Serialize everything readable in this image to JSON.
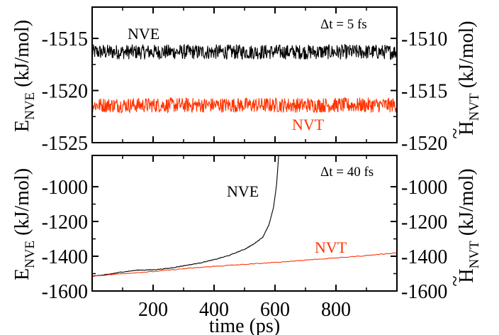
{
  "chart_data": [
    {
      "type": "line",
      "panel": "top",
      "annotation": "Δt = 5 fs",
      "xlim": [
        0,
        1000
      ],
      "left_axis": {
        "label_main": "E",
        "label_sub": "NVE",
        "label_unit": " (kJ/mol)",
        "ylim": [
          -1525,
          -1512
        ],
        "ticks": [
          -1515,
          -1520,
          -1525
        ],
        "tick_labels": [
          "-1515",
          "-1520",
          "-1525"
        ]
      },
      "right_axis": {
        "label_main": "H",
        "label_tilde": "~",
        "label_sub": "NVT",
        "label_unit": " (kJ/mol)",
        "ylim": [
          -1520,
          -1507
        ],
        "ticks": [
          -1510,
          -1515,
          -1520
        ],
        "tick_labels": [
          "-1510",
          "-1515",
          "-1520"
        ]
      },
      "series": [
        {
          "name": "NVE",
          "color": "#000000",
          "axis": "left",
          "mean": -1516.3,
          "fluctuation": 0.45
        },
        {
          "name": "NVT",
          "color": "#ff3300",
          "axis": "left",
          "mean": -1521.4,
          "fluctuation": 0.45
        }
      ]
    },
    {
      "type": "line",
      "panel": "bottom",
      "annotation": "Δt = 40 fs",
      "xlabel": "time (ps)",
      "xlim": [
        0,
        1000
      ],
      "x_ticks": [
        200,
        400,
        600,
        800
      ],
      "x_tick_labels": [
        "200",
        "400",
        "600",
        "800"
      ],
      "left_axis": {
        "label_main": "E",
        "label_sub": "NVE",
        "label_unit": " (kJ/mol)",
        "ylim": [
          -1600,
          -820
        ],
        "ticks": [
          -1000,
          -1200,
          -1400,
          -1600
        ],
        "tick_labels": [
          "-1000",
          "-1200",
          "-1400",
          "-1600"
        ]
      },
      "right_axis": {
        "label_main": "H",
        "label_tilde": "~",
        "label_sub": "NVT",
        "label_unit": " (kJ/mol)",
        "ylim": [
          -1600,
          -820
        ],
        "ticks": [
          -1000,
          -1200,
          -1400,
          -1600
        ],
        "tick_labels": [
          "-1000",
          "-1200",
          "-1400",
          "-1600"
        ]
      },
      "series": [
        {
          "name": "NVE",
          "color": "#000000",
          "axis": "left",
          "x": [
            0,
            50,
            100,
            150,
            200,
            250,
            300,
            350,
            400,
            450,
            500,
            530,
            560,
            580,
            595,
            605,
            612
          ],
          "y": [
            -1515,
            -1505,
            -1490,
            -1480,
            -1478,
            -1470,
            -1455,
            -1440,
            -1420,
            -1395,
            -1360,
            -1330,
            -1290,
            -1220,
            -1120,
            -990,
            -820
          ]
        },
        {
          "name": "NVT",
          "color": "#ff3300",
          "axis": "left",
          "x": [
            0,
            100,
            200,
            300,
            400,
            500,
            600,
            700,
            800,
            900,
            1000
          ],
          "y": [
            -1515,
            -1500,
            -1488,
            -1472,
            -1458,
            -1447,
            -1436,
            -1422,
            -1410,
            -1396,
            -1380
          ]
        }
      ]
    }
  ]
}
